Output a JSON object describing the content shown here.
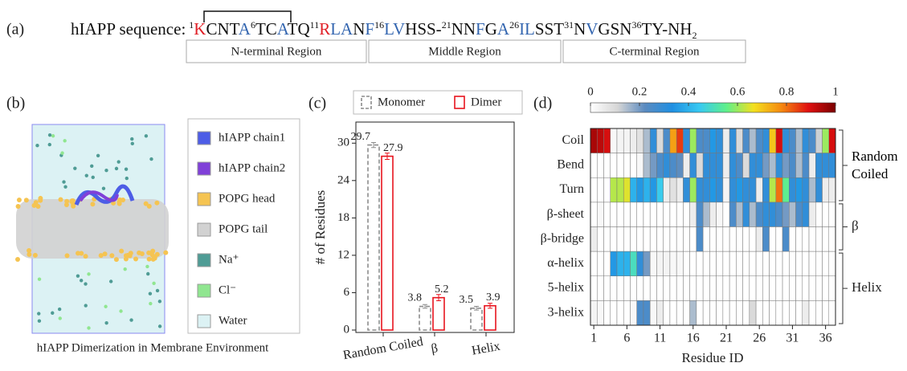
{
  "panel_a": {
    "label": "(a)",
    "prefix": "hIAPP sequence:",
    "sequence": [
      {
        "sup": "1"
      },
      {
        "text": "K",
        "color": "#e01f26"
      },
      {
        "text": "CNT"
      },
      {
        "text": "A",
        "color": "#3466b0"
      },
      {
        "sup": "6"
      },
      {
        "text": "TC"
      },
      {
        "text": "A",
        "color": "#3466b0"
      },
      {
        "text": "TQ"
      },
      {
        "sup": "11"
      },
      {
        "text": "R",
        "color": "#e01f26"
      },
      {
        "text": "LA",
        "color": "#3466b0"
      },
      {
        "text": "N"
      },
      {
        "text": "F",
        "color": "#3466b0"
      },
      {
        "sup": "16"
      },
      {
        "text": "LV",
        "color": "#3466b0"
      },
      {
        "text": "HSS-"
      },
      {
        "sup": "21"
      },
      {
        "text": "NN"
      },
      {
        "text": "F",
        "color": "#3466b0"
      },
      {
        "text": "G"
      },
      {
        "text": "A",
        "color": "#3466b0"
      },
      {
        "sup": "26"
      },
      {
        "text": "IL",
        "color": "#3466b0"
      },
      {
        "text": "SST"
      },
      {
        "sup": "31"
      },
      {
        "text": "N"
      },
      {
        "text": "V",
        "color": "#3466b0"
      },
      {
        "text": "GSN"
      },
      {
        "sup": "36"
      },
      {
        "text": "TY-NH"
      },
      {
        "sub": "2"
      }
    ],
    "regions": [
      "N-terminal Region",
      "Middle Region",
      "C-terminal Region"
    ]
  },
  "panel_b": {
    "label": "(b)",
    "caption": "hIAPP Dimerization in Membrane Environment",
    "legend": [
      {
        "name": "hIAPP chain1",
        "color": "#4d5de6"
      },
      {
        "name": "hIAPP chain2",
        "color": "#8040d8"
      },
      {
        "name": "POPG head",
        "color": "#f5c452"
      },
      {
        "name": "POPG tail",
        "color": "#d2d2d2"
      },
      {
        "name": "Na⁺",
        "color": "#4f9c95"
      },
      {
        "name": "Cl⁻",
        "color": "#90e690"
      },
      {
        "name": "Water",
        "color": "#dcf2f4"
      }
    ]
  },
  "chart_data": [
    {
      "type": "bar",
      "label": "(c)",
      "ylabel": "# of Residues",
      "categories": [
        "Random Coiled",
        "β",
        "Helix"
      ],
      "series": [
        {
          "name": "Monomer",
          "color": "#8c8c8c",
          "dashed": true,
          "values": [
            29.7,
            3.8,
            3.5
          ],
          "errors": [
            0.4,
            0.3,
            0.3
          ]
        },
        {
          "name": "Dimer",
          "color": "#e8141e",
          "dashed": false,
          "values": [
            27.9,
            5.2,
            3.9
          ],
          "errors": [
            0.5,
            0.5,
            0.4
          ]
        }
      ],
      "ylim": [
        0,
        33
      ],
      "yticks": [
        0,
        6,
        12,
        18,
        24,
        30
      ]
    },
    {
      "type": "heatmap",
      "label": "(d)",
      "xlabel": "Residue ID",
      "x": [
        1,
        2,
        3,
        4,
        5,
        6,
        7,
        8,
        9,
        10,
        11,
        12,
        13,
        14,
        15,
        16,
        17,
        18,
        19,
        20,
        21,
        22,
        23,
        24,
        25,
        26,
        27,
        28,
        29,
        30,
        31,
        32,
        33,
        34,
        35,
        36,
        37
      ],
      "xlim": [
        0.5,
        37.5
      ],
      "xticks": [
        1,
        6,
        11,
        16,
        21,
        26,
        31,
        36
      ],
      "rows": [
        "Coil",
        "Bend",
        "Turn",
        "β-sheet",
        "β-bridge",
        "α-helix",
        "5-helix",
        "3-helix"
      ],
      "groups": [
        {
          "label": "Random Coiled",
          "rows": 3
        },
        {
          "label": "β",
          "rows": 2
        },
        {
          "label": "Helix",
          "rows": 3
        }
      ],
      "clim": [
        0,
        1
      ],
      "cticks": [
        0,
        0.2,
        0.4,
        0.6,
        0.8,
        1
      ],
      "colormap": [
        "#ffffff",
        "#d6d6d6",
        "#5b8bc0",
        "#1f8fe2",
        "#37c9f2",
        "#5ff08a",
        "#f4e01e",
        "#f58a10",
        "#e01010",
        "#7a0000"
      ],
      "z": [
        [
          0.95,
          0.93,
          0.9,
          0.02,
          0.03,
          0.03,
          0.05,
          0.08,
          0.15,
          0.3,
          0.1,
          0.25,
          0.75,
          0.85,
          0.3,
          0.6,
          0.25,
          0.25,
          0.35,
          0.3,
          0.05,
          0.3,
          0.1,
          0.25,
          0.15,
          0.25,
          0.3,
          0.7,
          0.9,
          0.3,
          0.25,
          0.15,
          0.3,
          0.25,
          0.12,
          0.6,
          0.9
        ],
        [
          0,
          0,
          0,
          0,
          0,
          0,
          0,
          0.02,
          0.15,
          0.2,
          0.25,
          0.3,
          0.25,
          0.22,
          0.05,
          0.3,
          0.1,
          0.3,
          0.3,
          0.3,
          0.05,
          0.3,
          0.25,
          0.1,
          0.3,
          0.3,
          0.2,
          0.15,
          0.3,
          0.2,
          0.25,
          0.15,
          0.25,
          0.05,
          0.3,
          0.3,
          0.3
        ],
        [
          0,
          0,
          0,
          0.62,
          0.62,
          0.65,
          0.4,
          0.35,
          0.4,
          0.35,
          0.45,
          0.05,
          0.08,
          0.05,
          0.3,
          0.6,
          0.3,
          0.3,
          0.35,
          0.3,
          0.03,
          0.3,
          0.35,
          0.3,
          0.3,
          0.05,
          0.3,
          0.62,
          0.8,
          0.55,
          0.3,
          0.35,
          0.3,
          0.15,
          0.3,
          0.05,
          0.05
        ],
        [
          0,
          0.02,
          0,
          0,
          0,
          0,
          0,
          0,
          0,
          0,
          0,
          0,
          0,
          0,
          0,
          0.05,
          0.25,
          0.15,
          0.05,
          0.02,
          0,
          0.25,
          0.15,
          0.3,
          0.15,
          0.25,
          0.3,
          0.3,
          0.25,
          0.2,
          0.15,
          0.25,
          0.3,
          0.05,
          0,
          0,
          0
        ],
        [
          0.05,
          0,
          0,
          0,
          0,
          0,
          0,
          0,
          0,
          0,
          0,
          0,
          0,
          0,
          0,
          0,
          0.25,
          0,
          0,
          0,
          0,
          0,
          0,
          0,
          0,
          0.05,
          0.25,
          0,
          0,
          0.25,
          0,
          0,
          0,
          0,
          0,
          0,
          0
        ],
        [
          0,
          0,
          0,
          0.35,
          0.4,
          0.4,
          0.5,
          0.3,
          0.2,
          0.02,
          0.03,
          0.03,
          0.02,
          0.02,
          0,
          0,
          0,
          0,
          0,
          0,
          0,
          0,
          0,
          0,
          0,
          0,
          0,
          0,
          0,
          0,
          0,
          0,
          0,
          0,
          0,
          0,
          0
        ],
        [
          0,
          0,
          0,
          0,
          0,
          0,
          0,
          0,
          0,
          0,
          0,
          0,
          0,
          0,
          0,
          0,
          0,
          0,
          0,
          0,
          0,
          0,
          0,
          0,
          0,
          0,
          0,
          0,
          0,
          0,
          0,
          0,
          0,
          0,
          0,
          0,
          0
        ],
        [
          0.03,
          0.02,
          0,
          0,
          0,
          0,
          0.02,
          0.25,
          0.25,
          0.02,
          0.05,
          0,
          0,
          0,
          0,
          0.15,
          0,
          0,
          0,
          0,
          0,
          0,
          0,
          0,
          0.1,
          0,
          0,
          0,
          0,
          0,
          0,
          0,
          0.05,
          0,
          0,
          0,
          0
        ]
      ]
    }
  ]
}
